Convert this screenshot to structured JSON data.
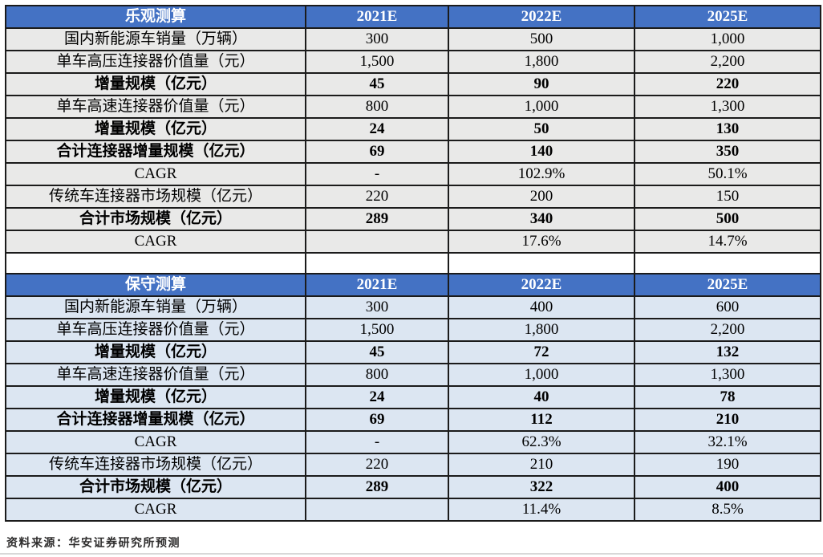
{
  "colors": {
    "header_bg": "#4472C4",
    "header_text": "#ffffff",
    "optimistic_row_bg": "#E9E9E8",
    "conservative_row_bg": "#DCE6F2",
    "border": "#1b1b1b",
    "cell_text": "#000000",
    "footer_text": "#2e2d2d",
    "bottom_rule": "#d8d8d8"
  },
  "tables": [
    {
      "title": "乐观测算",
      "columns": [
        "2021E",
        "2022E",
        "2025E"
      ],
      "rows": [
        {
          "label": "国内新能源车销量（万辆）",
          "values": [
            "300",
            "500",
            "1,000"
          ],
          "bold": false
        },
        {
          "label": "单车高压连接器价值量（元）",
          "values": [
            "1,500",
            "1,800",
            "2,200"
          ],
          "bold": false
        },
        {
          "label": "增量规模（亿元）",
          "values": [
            "45",
            "90",
            "220"
          ],
          "bold": true
        },
        {
          "label": "单车高速连接器价值量（元）",
          "values": [
            "800",
            "1,000",
            "1,300"
          ],
          "bold": false
        },
        {
          "label": "增量规模（亿元）",
          "values": [
            "24",
            "50",
            "130"
          ],
          "bold": true
        },
        {
          "label": "合计连接器增量规模（亿元）",
          "values": [
            "69",
            "140",
            "350"
          ],
          "bold": true
        },
        {
          "label": "CAGR",
          "values": [
            "-",
            "102.9%",
            "50.1%"
          ],
          "bold": false
        },
        {
          "label": "传统车连接器市场规模（亿元）",
          "values": [
            "220",
            "200",
            "150"
          ],
          "bold": false
        },
        {
          "label": "合计市场规模（亿元）",
          "values": [
            "289",
            "340",
            "500"
          ],
          "bold": true
        },
        {
          "label": "CAGR",
          "values": [
            "",
            "17.6%",
            "14.7%"
          ],
          "bold": false
        }
      ]
    },
    {
      "title": "保守测算",
      "columns": [
        "2021E",
        "2022E",
        "2025E"
      ],
      "rows": [
        {
          "label": "国内新能源车销量（万辆）",
          "values": [
            "300",
            "400",
            "600"
          ],
          "bold": false
        },
        {
          "label": "单车高压连接器价值量（元）",
          "values": [
            "1,500",
            "1,800",
            "2,200"
          ],
          "bold": false
        },
        {
          "label": "增量规模（亿元）",
          "values": [
            "45",
            "72",
            "132"
          ],
          "bold": true
        },
        {
          "label": "单车高速连接器价值量（元）",
          "values": [
            "800",
            "1,000",
            "1,300"
          ],
          "bold": false
        },
        {
          "label": "增量规模（亿元）",
          "values": [
            "24",
            "40",
            "78"
          ],
          "bold": true
        },
        {
          "label": "合计连接器增量规模（亿元）",
          "values": [
            "69",
            "112",
            "210"
          ],
          "bold": true
        },
        {
          "label": "CAGR",
          "values": [
            "-",
            "62.3%",
            "32.1%"
          ],
          "bold": false
        },
        {
          "label": "传统车连接器市场规模（亿元）",
          "values": [
            "220",
            "210",
            "190"
          ],
          "bold": false
        },
        {
          "label": "合计市场规模（亿元）",
          "values": [
            "289",
            "322",
            "400"
          ],
          "bold": true
        },
        {
          "label": "CAGR",
          "values": [
            "",
            "11.4%",
            "8.5%"
          ],
          "bold": false
        }
      ]
    }
  ],
  "footer": {
    "source": "资料来源：华安证券研究所预测"
  }
}
